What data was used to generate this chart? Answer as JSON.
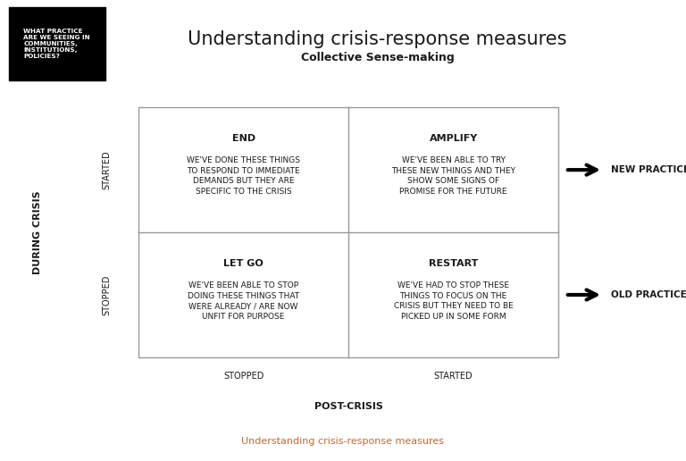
{
  "title": "Understanding crisis-response measures",
  "subtitle": "Collective Sense-making",
  "footer": "Understanding crisis-response measures",
  "bg_box_text": "WHAT PRACTICE\nARE WE SEEING IN\nCOMMUNITIES,\nINSTITUTIONS,\nPOLICIES?",
  "during_crisis_label": "DURING CRISIS",
  "post_crisis_label": "POST-CRISIS",
  "y_started_label": "STARTED",
  "y_stopped_label": "STOPPED",
  "x_stopped_label": "STOPPED",
  "x_started_label": "STARTED",
  "new_practice_label": "NEW PRACTICE",
  "old_practice_label": "OLD PRACTICE",
  "cells": [
    {
      "title": "END",
      "body": "WE'VE DONE THESE THINGS\nTO RESPOND TO IMMEDIATE\nDEMANDS BUT THEY ARE\nSPECIFIC TO THE CRISIS",
      "row": 0,
      "col": 0
    },
    {
      "title": "AMPLIFY",
      "body": "WE'VE BEEN ABLE TO TRY\nTHESE NEW THINGS AND THEY\nSHOW SOME SIGNS OF\nPROMISE FOR THE FUTURE",
      "row": 0,
      "col": 1
    },
    {
      "title": "LET GO",
      "body": "WE'VE BEEN ABLE TO STOP\nDOING THESE THINGS THAT\nWERE ALREADY / ARE NOW\nUNFIT FOR PURPOSE",
      "row": 1,
      "col": 0
    },
    {
      "title": "RESTART",
      "body": "WE'VE HAD TO STOP THESE\nTHINGS TO FOCUS ON THE\nCRISIS BUT THEY NEED TO BE\nPICKED UP IN SOME FORM",
      "row": 1,
      "col": 1
    }
  ],
  "footer_color": "#c0693a",
  "grid_color": "#999999",
  "text_color": "#1a1a1a",
  "bg_color": "#ffffff",
  "title_fontsize": 15,
  "subtitle_fontsize": 9,
  "cell_title_fontsize": 8,
  "cell_body_fontsize": 6.5,
  "label_fontsize": 7,
  "axis_label_fontsize": 8,
  "footer_fontsize": 8,
  "arrow_label_fontsize": 7.5
}
